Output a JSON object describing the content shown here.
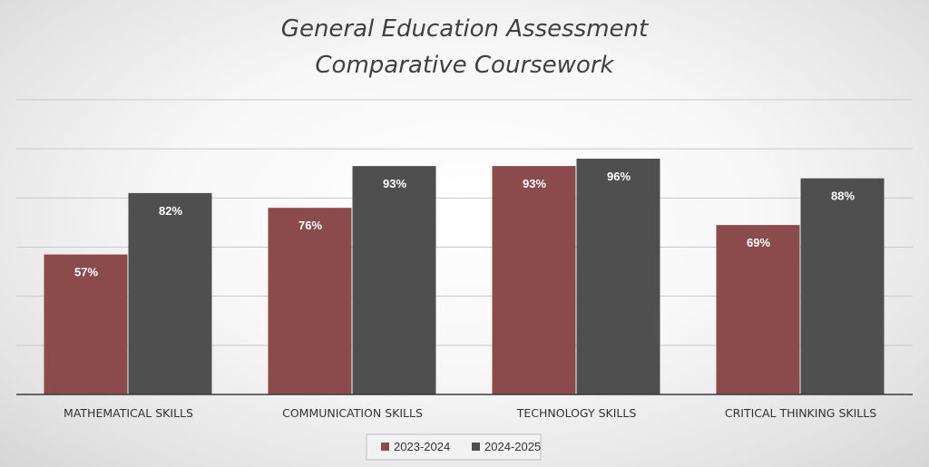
{
  "chart_data": {
    "type": "bar",
    "title_lines": [
      "General Education Assessment",
      "Comparative Coursework"
    ],
    "categories": [
      "MATHEMATICAL SKILLS",
      "COMMUNICATION SKILLS",
      "TECHNOLOGY SKILLS",
      "CRITICAL THINKING SKILLS"
    ],
    "series": [
      {
        "name": "2023-2024",
        "values": [
          57,
          76,
          93,
          69
        ],
        "labels": [
          "57%",
          "76%",
          "93%",
          "69%"
        ],
        "color": "#8b4a4c"
      },
      {
        "name": "2024-2025",
        "values": [
          82,
          93,
          96,
          88
        ],
        "labels": [
          "82%",
          "93%",
          "96%",
          "88%"
        ],
        "color": "#4f4f4f"
      }
    ],
    "ylim": [
      0,
      120
    ],
    "grid": true,
    "legend": "bottom",
    "xlabel": "",
    "ylabel": ""
  }
}
